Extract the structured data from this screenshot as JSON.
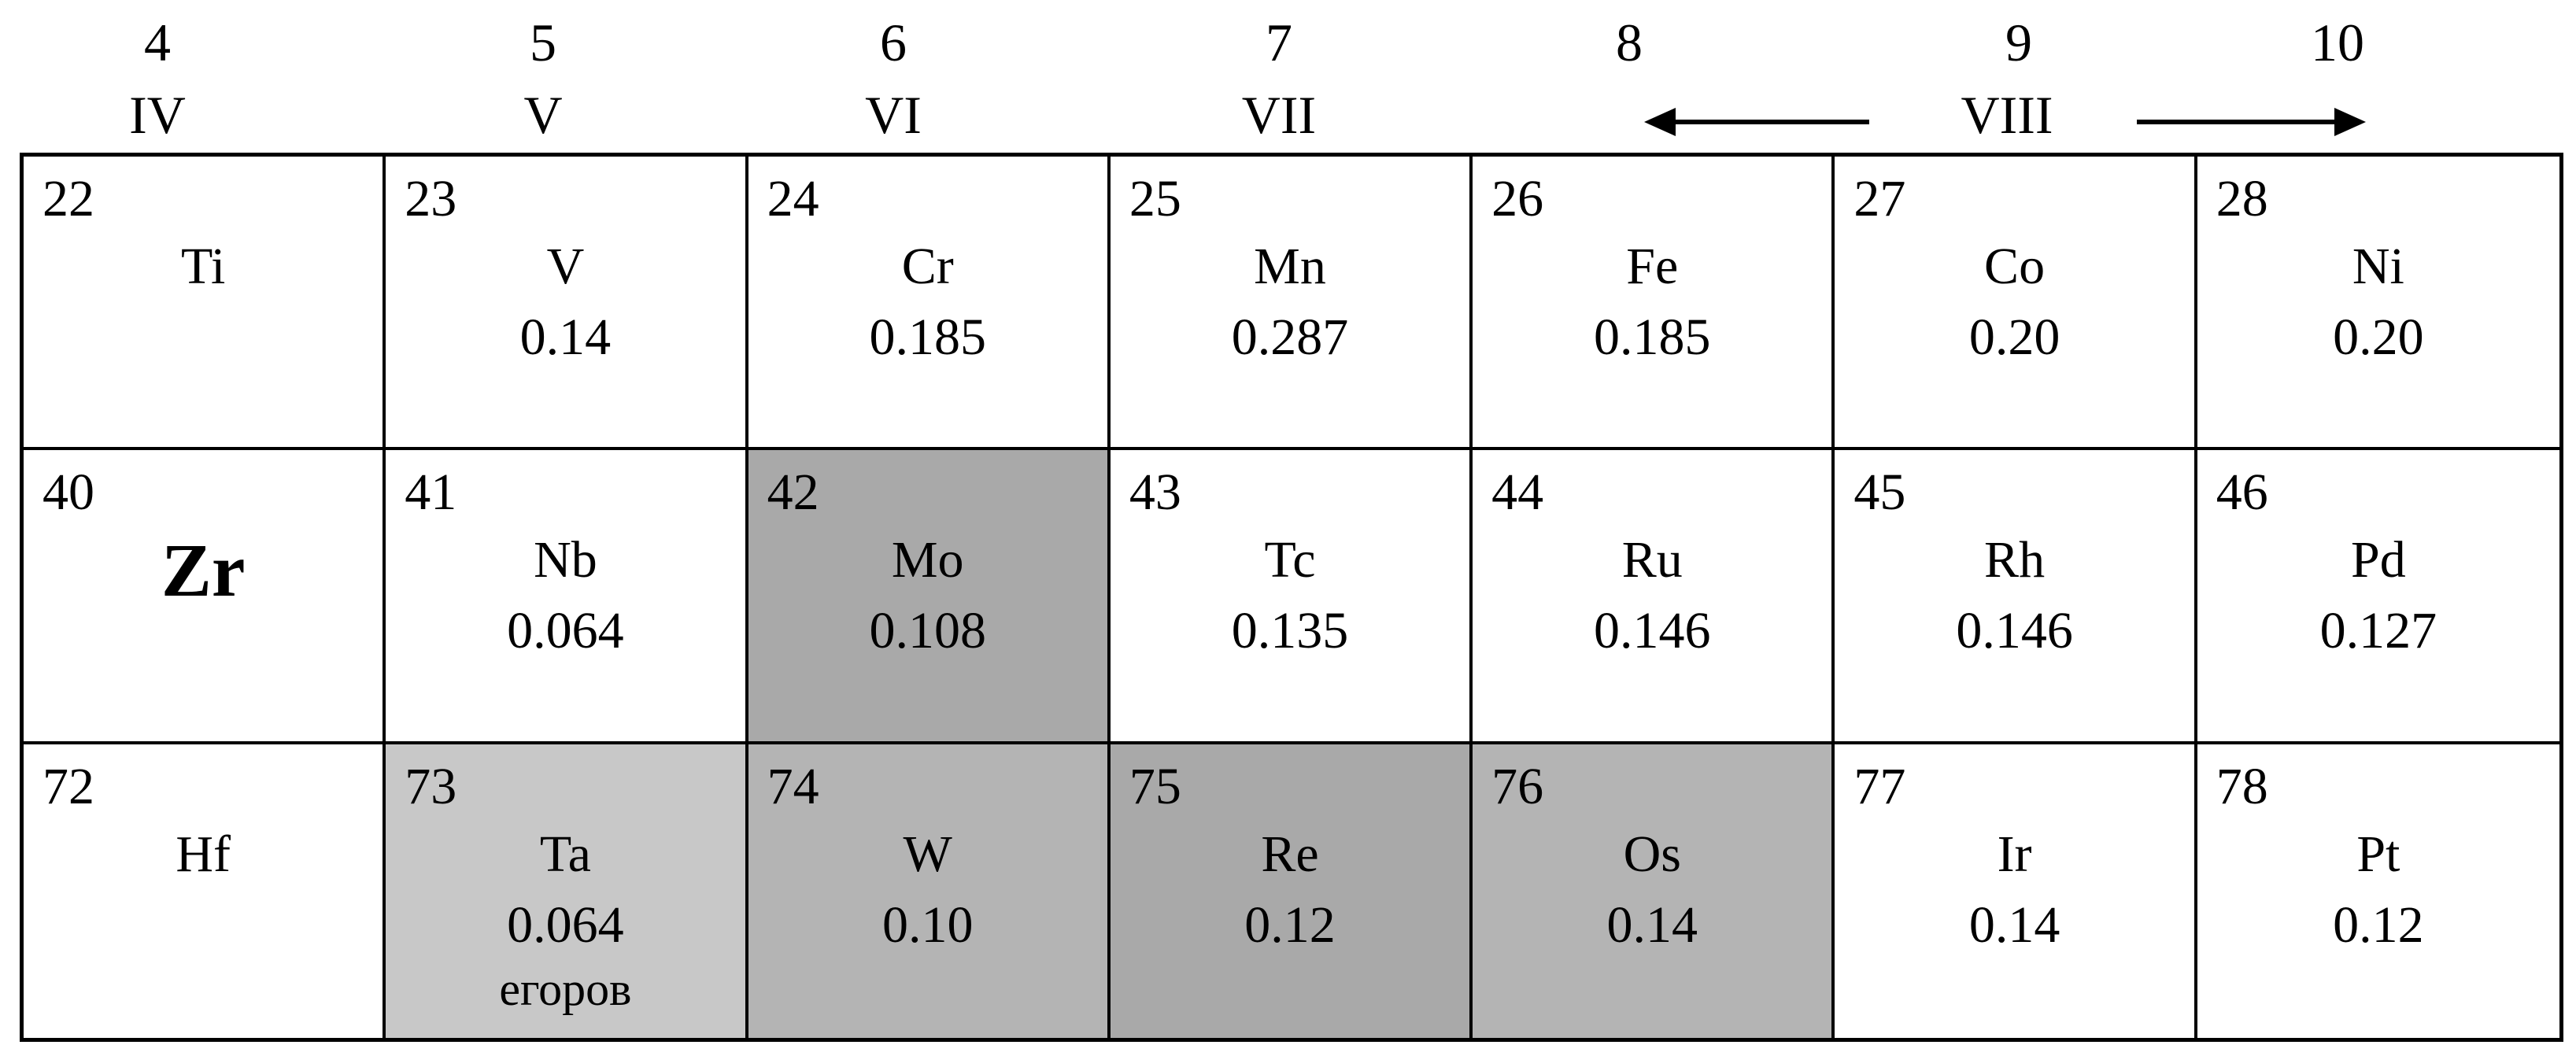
{
  "header": {
    "groups": [
      {
        "num": "4",
        "roman": "IV"
      },
      {
        "num": "5",
        "roman": "V"
      },
      {
        "num": "6",
        "roman": "VI"
      },
      {
        "num": "7",
        "roman": "VII"
      },
      {
        "num": "8",
        "roman": ""
      },
      {
        "num": "9",
        "roman": ""
      },
      {
        "num": "10",
        "roman": ""
      }
    ],
    "viii_label": "VIII"
  },
  "colors": {
    "light_gray": "#c8c8c8",
    "mid_gray": "#b4b4b4",
    "dark_gray": "#a9a9a9",
    "white": "#ffffff"
  },
  "cells": [
    {
      "z": "22",
      "sym": "Ti",
      "val": "",
      "note": "",
      "shade": "white"
    },
    {
      "z": "23",
      "sym": "V",
      "val": "0.14",
      "note": "",
      "shade": "white"
    },
    {
      "z": "24",
      "sym": "Cr",
      "val": "0.185",
      "note": "",
      "shade": "white"
    },
    {
      "z": "25",
      "sym": "Mn",
      "val": "0.287",
      "note": "",
      "shade": "white"
    },
    {
      "z": "26",
      "sym": "Fe",
      "val": "0.185",
      "note": "",
      "shade": "white"
    },
    {
      "z": "27",
      "sym": "Co",
      "val": "0.20",
      "note": "",
      "shade": "white"
    },
    {
      "z": "28",
      "sym": "Ni",
      "val": "0.20",
      "note": "",
      "shade": "white"
    },
    {
      "z": "40",
      "sym": "Zr",
      "val": "",
      "note": "",
      "shade": "white",
      "bold": true
    },
    {
      "z": "41",
      "sym": "Nb",
      "val": "0.064",
      "note": "",
      "shade": "white"
    },
    {
      "z": "42",
      "sym": "Mo",
      "val": "0.108",
      "note": "",
      "shade": "dark_gray"
    },
    {
      "z": "43",
      "sym": "Tc",
      "val": "0.135",
      "note": "",
      "shade": "white"
    },
    {
      "z": "44",
      "sym": "Ru",
      "val": "0.146",
      "note": "",
      "shade": "white"
    },
    {
      "z": "45",
      "sym": "Rh",
      "val": "0.146",
      "note": "",
      "shade": "white"
    },
    {
      "z": "46",
      "sym": "Pd",
      "val": "0.127",
      "note": "",
      "shade": "white"
    },
    {
      "z": "72",
      "sym": "Hf",
      "val": "",
      "note": "",
      "shade": "white"
    },
    {
      "z": "73",
      "sym": "Ta",
      "val": "0.064",
      "note": "егоров",
      "shade": "light_gray"
    },
    {
      "z": "74",
      "sym": "W",
      "val": "0.10",
      "note": "",
      "shade": "mid_gray"
    },
    {
      "z": "75",
      "sym": "Re",
      "val": "0.12",
      "note": "",
      "shade": "dark_gray"
    },
    {
      "z": "76",
      "sym": "Os",
      "val": "0.14",
      "note": "",
      "shade": "mid_gray"
    },
    {
      "z": "77",
      "sym": "Ir",
      "val": "0.14",
      "note": "",
      "shade": "white"
    },
    {
      "z": "78",
      "sym": "Pt",
      "val": "0.12",
      "note": "",
      "shade": "white"
    }
  ]
}
